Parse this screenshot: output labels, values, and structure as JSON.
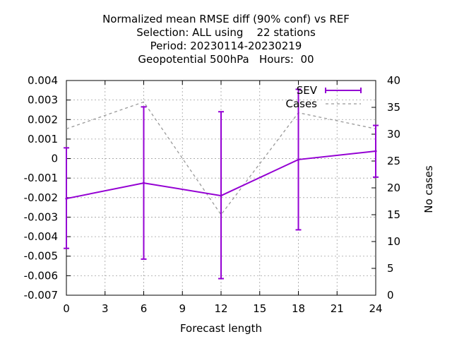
{
  "chart_data": {
    "type": "line",
    "title_lines": [
      "Normalized mean RMSE diff (90% conf) vs REF",
      "Selection: ALL using    22 stations",
      "Period: 20230114-20230219",
      "Geopotential 500hPa   Hours:  00"
    ],
    "xlabel": "Forecast length",
    "ylabel": "",
    "y2label": "No cases",
    "x": [
      0,
      6,
      12,
      18,
      24
    ],
    "xlim": [
      0,
      24
    ],
    "xticks": [
      0,
      3,
      6,
      9,
      12,
      15,
      18,
      21,
      24
    ],
    "ylim": [
      -0.007,
      0.004
    ],
    "yticks": [
      -0.007,
      -0.006,
      -0.005,
      -0.004,
      -0.003,
      -0.002,
      -0.001,
      0,
      0.001,
      0.002,
      0.003,
      0.004
    ],
    "ytick_labels": [
      "-0.007",
      "-0.006",
      "-0.005",
      "-0.004",
      "-0.003",
      "-0.002",
      "-0.001",
      "0",
      "0.001",
      "0.002",
      "0.003",
      "0.004"
    ],
    "y2lim": [
      0,
      40
    ],
    "y2ticks": [
      0,
      5,
      10,
      15,
      20,
      25,
      30,
      35,
      40
    ],
    "grid": true,
    "legend_position": "top-right",
    "series": [
      {
        "name": "SEV",
        "axis": "left",
        "color": "#9400d3",
        "style": "errorbars",
        "values": [
          -0.00205,
          -0.00125,
          -0.0019,
          -5e-05,
          0.00038
        ],
        "lower": [
          -0.0046,
          -0.00515,
          -0.00615,
          -0.00365,
          -0.00095
        ],
        "upper": [
          0.00055,
          0.00265,
          0.0024,
          0.00355,
          0.0017
        ]
      },
      {
        "name": "Cases",
        "axis": "right",
        "color": "#999999",
        "style": "dashed",
        "values": [
          31,
          36,
          15,
          34,
          31
        ]
      }
    ]
  }
}
